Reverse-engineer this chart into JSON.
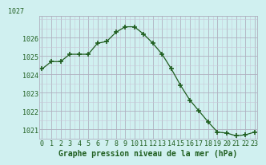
{
  "x": [
    0,
    1,
    2,
    3,
    4,
    5,
    6,
    7,
    8,
    9,
    10,
    11,
    12,
    13,
    14,
    15,
    16,
    17,
    18,
    19,
    20,
    21,
    22,
    23
  ],
  "y": [
    1024.3,
    1024.7,
    1024.7,
    1025.1,
    1025.1,
    1025.1,
    1025.7,
    1025.8,
    1026.3,
    1026.6,
    1026.6,
    1026.2,
    1025.7,
    1025.1,
    1024.3,
    1023.4,
    1022.6,
    1022.0,
    1021.4,
    1020.85,
    1020.8,
    1020.65,
    1020.7,
    1020.85
  ],
  "ylim": [
    1020.5,
    1027.2
  ],
  "yticks": [
    1021,
    1022,
    1023,
    1024,
    1025,
    1026
  ],
  "ytick_labels": [
    "1021",
    "1022",
    "1023",
    "1024",
    "1025",
    "1026"
  ],
  "xticks": [
    0,
    1,
    2,
    3,
    4,
    5,
    6,
    7,
    8,
    9,
    10,
    11,
    12,
    13,
    14,
    15,
    16,
    17,
    18,
    19,
    20,
    21,
    22,
    23
  ],
  "line_color": "#1f5e1f",
  "marker_color": "#1f5e1f",
  "bg_color": "#d0f0f0",
  "grid_color_major": "#b0b0c0",
  "grid_color_minor": "#c8c8d8",
  "xlabel": "Graphe pression niveau de la mer (hPa)",
  "xlabel_fontsize": 7,
  "tick_fontsize": 6,
  "label_color": "#1f5e1f",
  "top_ylabel": "1027"
}
